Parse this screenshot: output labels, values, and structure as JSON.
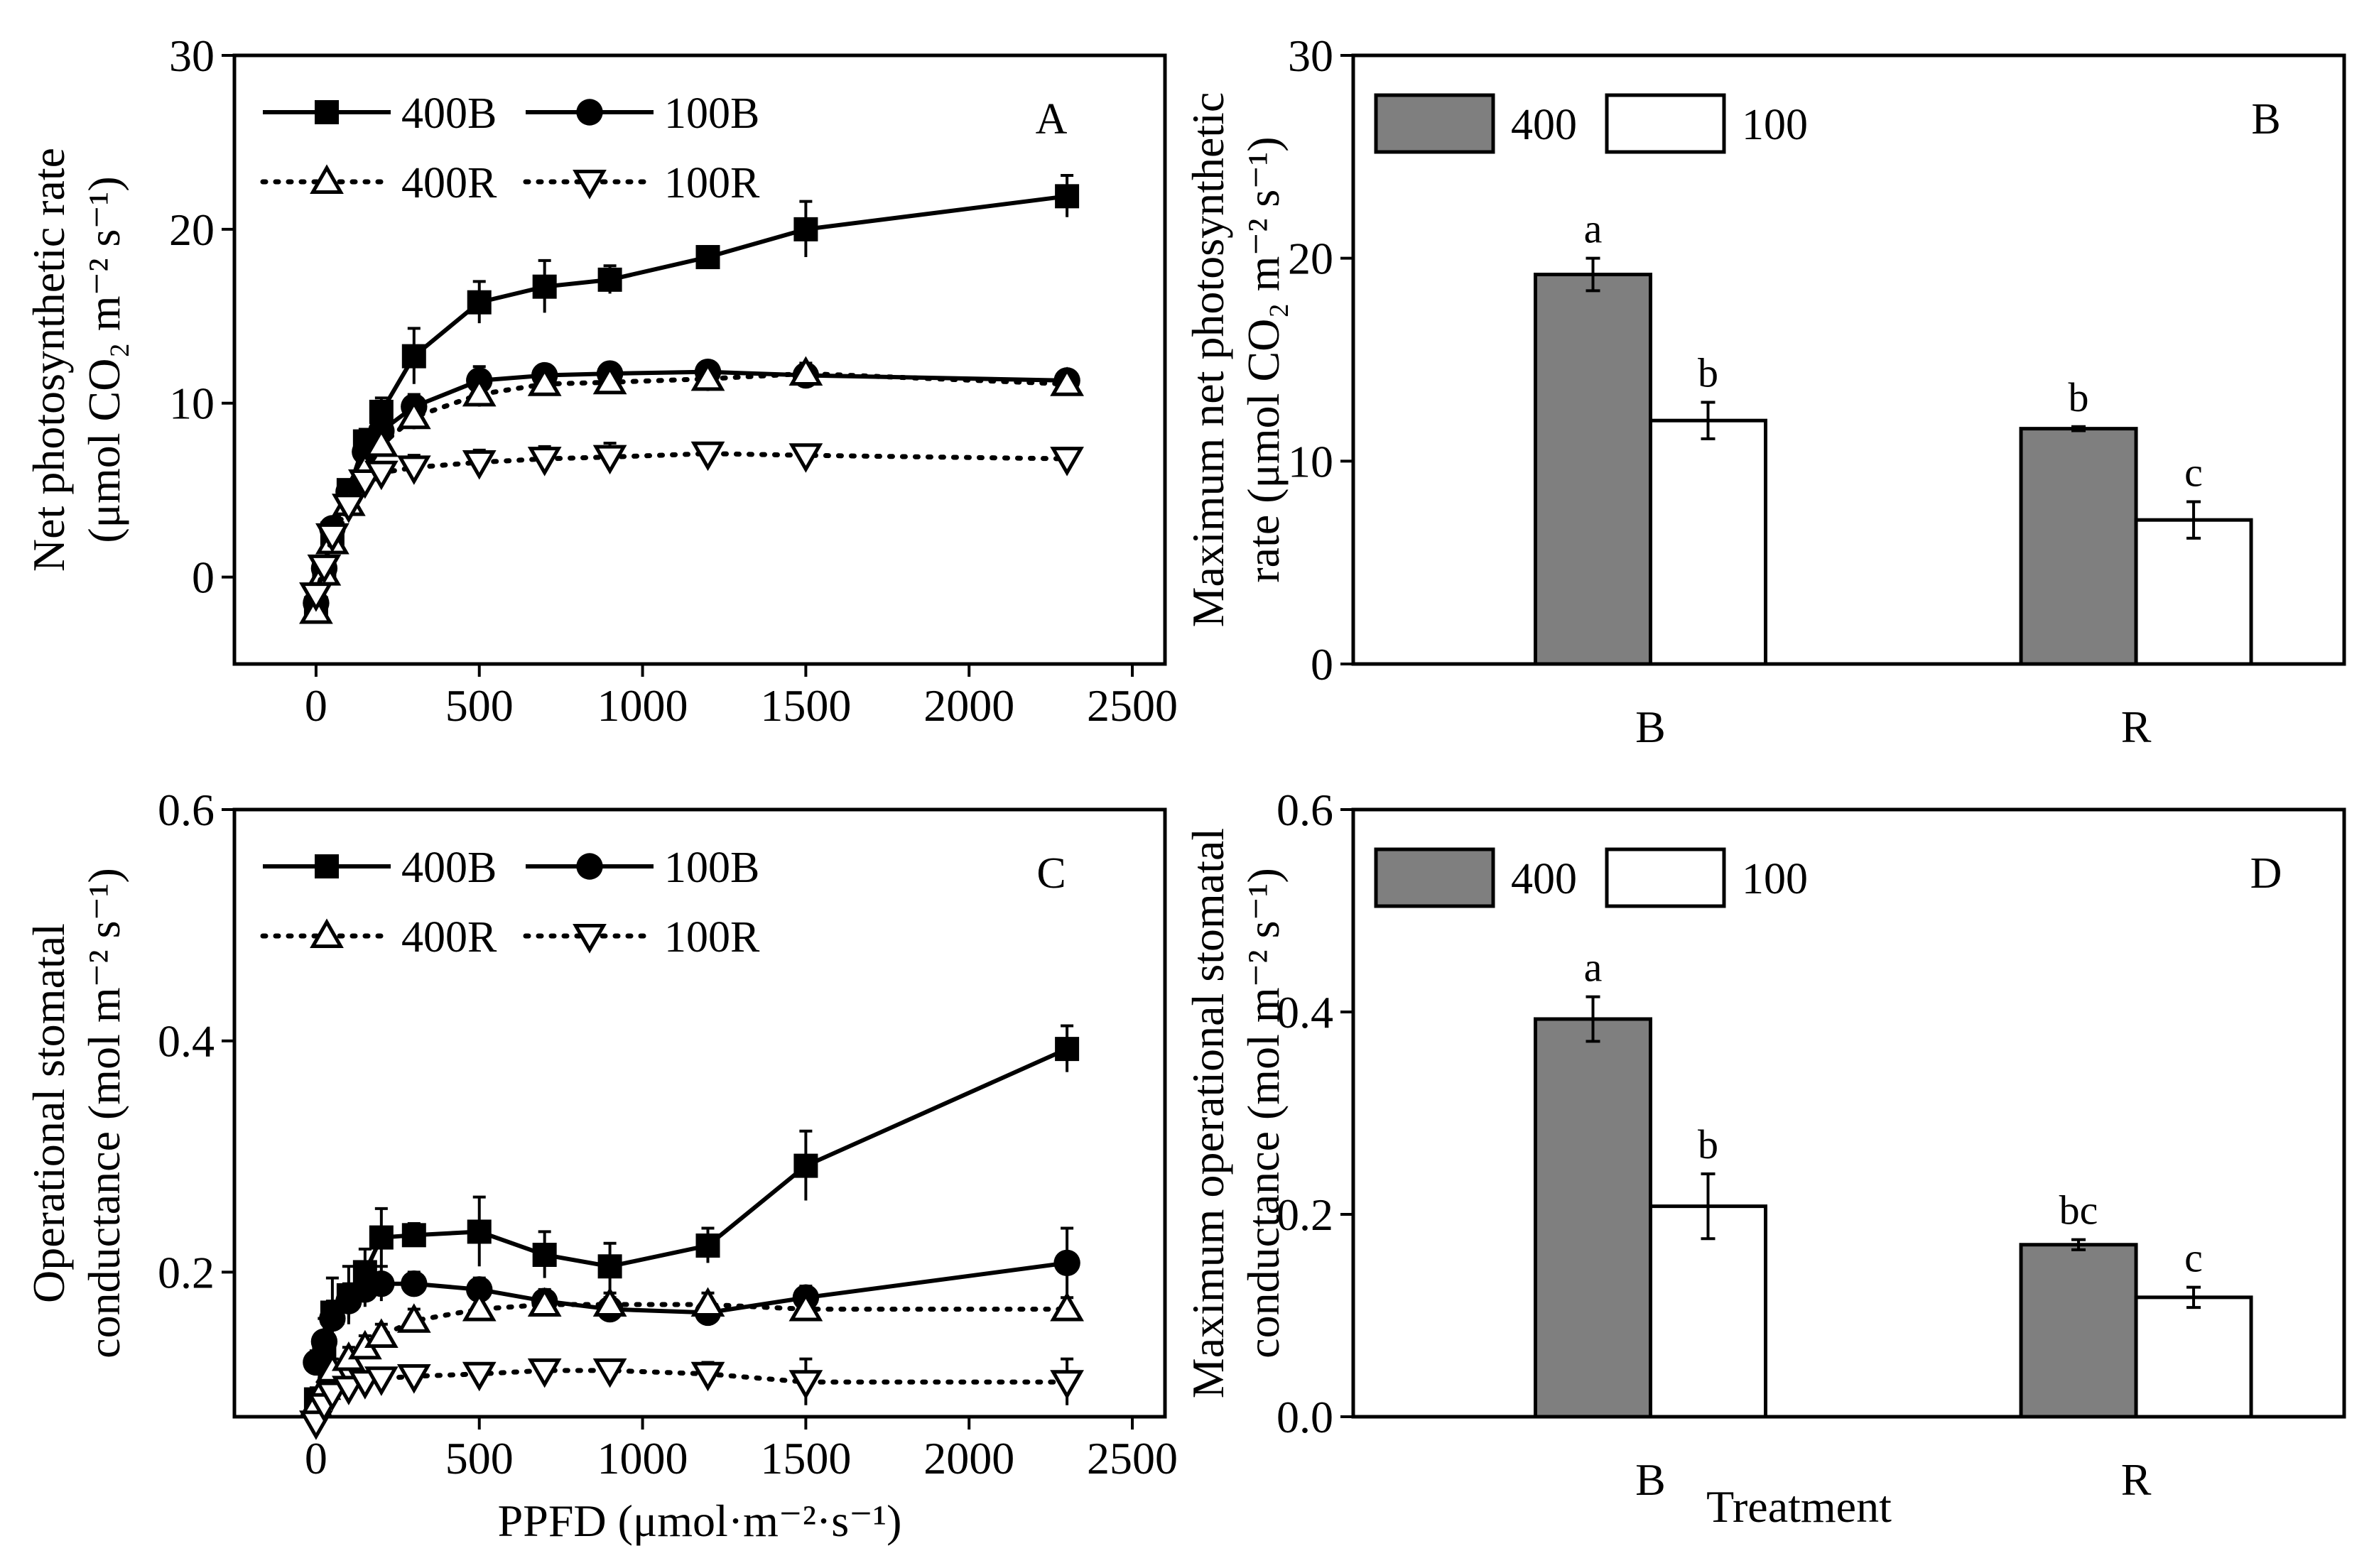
{
  "chart_data": [
    {
      "type": "line",
      "panel": "A",
      "x": [
        0,
        25,
        50,
        100,
        150,
        200,
        300,
        500,
        700,
        900,
        1200,
        1500,
        2300
      ],
      "series": [
        {
          "name": "400B",
          "line": "solid",
          "marker": "square",
          "values": [
            -1.8,
            0.5,
            2.5,
            5.0,
            7.8,
            9.5,
            12.7,
            15.8,
            16.7,
            17.1,
            18.4,
            20.0,
            21.9
          ],
          "errors": [
            0.6,
            0.6,
            0.6,
            0.6,
            0.7,
            0.8,
            1.6,
            1.2,
            1.5,
            0.8,
            0.6,
            1.6,
            1.2
          ]
        },
        {
          "name": "100B",
          "line": "solid",
          "marker": "circle",
          "values": [
            -1.5,
            0.5,
            2.8,
            4.9,
            7.2,
            8.4,
            9.8,
            11.3,
            11.6,
            11.7,
            11.8,
            11.6,
            11.3
          ],
          "errors": [
            0.5,
            0.5,
            0.5,
            0.5,
            0.6,
            0.6,
            0.7,
            0.8,
            0.6,
            0.6,
            0.6,
            0.6,
            0.6
          ]
        },
        {
          "name": "400R",
          "line": "dotted",
          "marker": "triangle-up",
          "values": [
            -2.0,
            0.2,
            2.0,
            4.2,
            6.2,
            7.6,
            9.2,
            10.5,
            11.1,
            11.2,
            11.4,
            11.7,
            11.1
          ],
          "errors": [
            0.5,
            0.5,
            0.5,
            0.5,
            0.6,
            0.6,
            0.7,
            0.7,
            0.6,
            0.6,
            0.7,
            0.6,
            0.6
          ]
        },
        {
          "name": "100R",
          "line": "dotted",
          "marker": "triangle-down",
          "values": [
            -1.0,
            0.6,
            2.4,
            4.1,
            5.5,
            6.0,
            6.3,
            6.6,
            6.8,
            6.9,
            7.1,
            7.0,
            6.8
          ],
          "errors": [
            0.5,
            0.5,
            0.5,
            0.5,
            0.6,
            0.6,
            0.7,
            0.7,
            0.7,
            0.8,
            0.6,
            0.6,
            0.6
          ]
        }
      ],
      "title": "",
      "panel_label": "A",
      "xlabel": "",
      "ylabel_line1": "Net photosynthetic rate",
      "ylabel_line2": "(μmol CO₂ m⁻² s⁻¹)",
      "xlim": [
        -250,
        2600
      ],
      "ylim": [
        -5,
        30
      ],
      "xticks": [
        0,
        500,
        1000,
        1500,
        2000,
        2500
      ],
      "yticks": [
        0,
        10,
        20,
        30
      ],
      "legend_position": "top-left"
    },
    {
      "type": "bar",
      "panel": "B",
      "categories": [
        "B",
        "R"
      ],
      "series": [
        {
          "name": "400",
          "color": "#7f7f7f",
          "values": [
            19.2,
            11.6
          ],
          "errors": [
            0.8,
            0.1
          ],
          "letters": [
            "a",
            "b"
          ]
        },
        {
          "name": "100",
          "color": "#ffffff",
          "values": [
            12.0,
            7.1
          ],
          "errors": [
            0.9,
            0.9
          ],
          "letters": [
            "b",
            "c"
          ]
        }
      ],
      "title": "",
      "panel_label": "B",
      "xlabel": "",
      "ylabel_line1": "Maximum net photosynthetic",
      "ylabel_line2": "rate (μmol CO₂ m⁻² s⁻¹)",
      "ylim": [
        0,
        30
      ],
      "yticks": [
        0,
        10,
        20,
        30
      ],
      "legend_position": "top-left"
    },
    {
      "type": "line",
      "panel": "C",
      "x": [
        0,
        25,
        50,
        100,
        150,
        200,
        300,
        500,
        700,
        900,
        1200,
        1500,
        2300
      ],
      "series": [
        {
          "name": "400B",
          "line": "solid",
          "marker": "square",
          "values": [
            0.09,
            0.13,
            0.165,
            0.18,
            0.2,
            0.23,
            0.232,
            0.235,
            0.215,
            0.205,
            0.223,
            0.292,
            0.393
          ],
          "errors": [
            0.01,
            0.03,
            0.03,
            0.025,
            0.02,
            0.025,
            0.01,
            0.03,
            0.02,
            0.02,
            0.015,
            0.03,
            0.02
          ]
        },
        {
          "name": "100B",
          "line": "solid",
          "marker": "circle",
          "values": [
            0.122,
            0.14,
            0.16,
            0.175,
            0.185,
            0.19,
            0.19,
            0.185,
            0.175,
            0.168,
            0.165,
            0.178,
            0.208
          ],
          "errors": [
            0.01,
            0.02,
            0.015,
            0.015,
            0.015,
            0.015,
            0.01,
            0.01,
            0.01,
            0.01,
            0.01,
            0.01,
            0.03
          ]
        },
        {
          "name": "400R",
          "line": "dotted",
          "marker": "triangle-up",
          "values": [
            0.085,
            0.1,
            0.115,
            0.125,
            0.135,
            0.145,
            0.158,
            0.168,
            0.172,
            0.172,
            0.172,
            0.168,
            0.168
          ],
          "errors": [
            0.008,
            0.01,
            0.01,
            0.01,
            0.01,
            0.01,
            0.01,
            0.01,
            0.01,
            0.01,
            0.01,
            0.01,
            0.01
          ]
        },
        {
          "name": "100R",
          "line": "dotted",
          "marker": "triangle-down",
          "values": [
            0.07,
            0.085,
            0.095,
            0.1,
            0.105,
            0.108,
            0.11,
            0.112,
            0.115,
            0.115,
            0.112,
            0.105,
            0.105
          ],
          "errors": [
            0.008,
            0.008,
            0.008,
            0.008,
            0.008,
            0.008,
            0.008,
            0.008,
            0.008,
            0.008,
            0.01,
            0.02,
            0.02
          ]
        }
      ],
      "title": "",
      "panel_label": "C",
      "xlabel": "PPFD (μmol·m⁻²·s⁻¹)",
      "ylabel_line1": "Operational stomatal",
      "ylabel_line2": "conductance (mol m⁻² s⁻¹)",
      "xlim": [
        -250,
        2600
      ],
      "ylim": [
        0.075,
        0.6
      ],
      "xticks": [
        0,
        500,
        1000,
        1500,
        2000,
        2500
      ],
      "yticks": [
        0.2,
        0.4,
        0.6
      ],
      "legend_position": "top-left"
    },
    {
      "type": "bar",
      "panel": "D",
      "categories": [
        "B",
        "R"
      ],
      "series": [
        {
          "name": "400",
          "color": "#7f7f7f",
          "values": [
            0.393,
            0.17
          ],
          "errors": [
            0.022,
            0.005
          ],
          "letters": [
            "a",
            "bc"
          ]
        },
        {
          "name": "100",
          "color": "#ffffff",
          "values": [
            0.208,
            0.118
          ],
          "errors": [
            0.032,
            0.01
          ],
          "letters": [
            "b",
            "c"
          ]
        }
      ],
      "title": "",
      "panel_label": "D",
      "xlabel": "Treatment",
      "ylabel_line1": "Maximum operational stomatal",
      "ylabel_line2": "conductance (mol m⁻² s⁻¹)",
      "ylim": [
        0,
        0.6
      ],
      "yticks": [
        0.0,
        0.2,
        0.4,
        0.6
      ],
      "legend_position": "top-left"
    }
  ]
}
